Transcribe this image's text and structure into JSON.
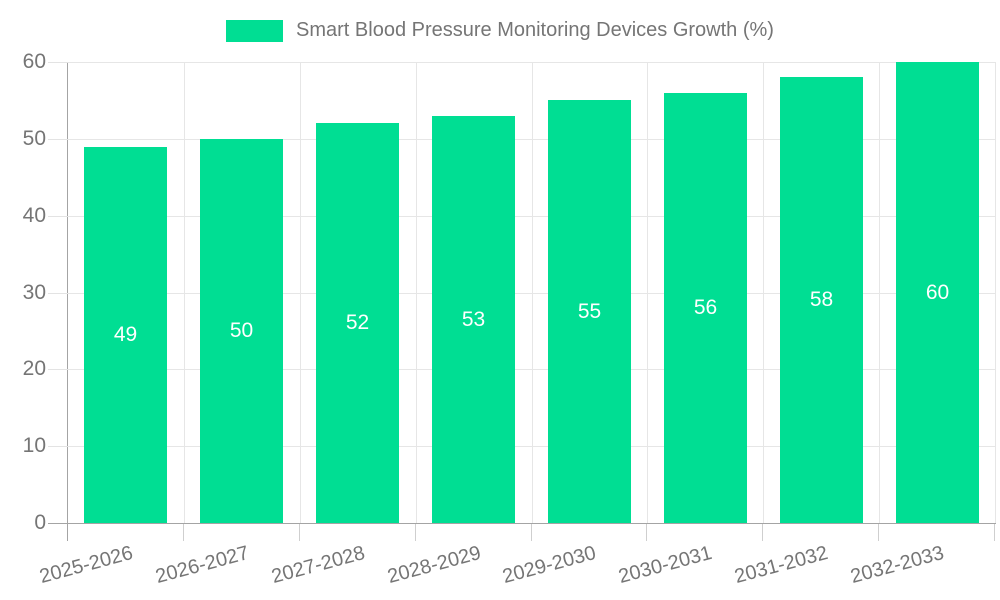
{
  "chart_data": {
    "type": "bar",
    "title": "Smart Blood Pressure Monitoring Devices Growth (%)",
    "categories": [
      "2025-2026",
      "2026-2027",
      "2027-2028",
      "2028-2029",
      "2029-2030",
      "2030-2031",
      "2031-2032",
      "2032-2033"
    ],
    "values": [
      49,
      50,
      52,
      53,
      55,
      56,
      58,
      60
    ],
    "series": [
      {
        "name": "Smart Blood Pressure Monitoring Devices Growth (%)",
        "values": [
          49,
          50,
          52,
          53,
          55,
          56,
          58,
          60
        ]
      }
    ],
    "xlabel": "",
    "ylabel": "",
    "ylim": [
      0,
      60
    ],
    "yticks": [
      0,
      10,
      20,
      30,
      40,
      50,
      60
    ],
    "grid": true,
    "legend_position": "top",
    "bar_color": "#00DE93",
    "value_label_color": "#ffffff",
    "text_color": "#757575",
    "grid_color": "#e6e6e6",
    "axis_color": "#a4a4a4"
  }
}
